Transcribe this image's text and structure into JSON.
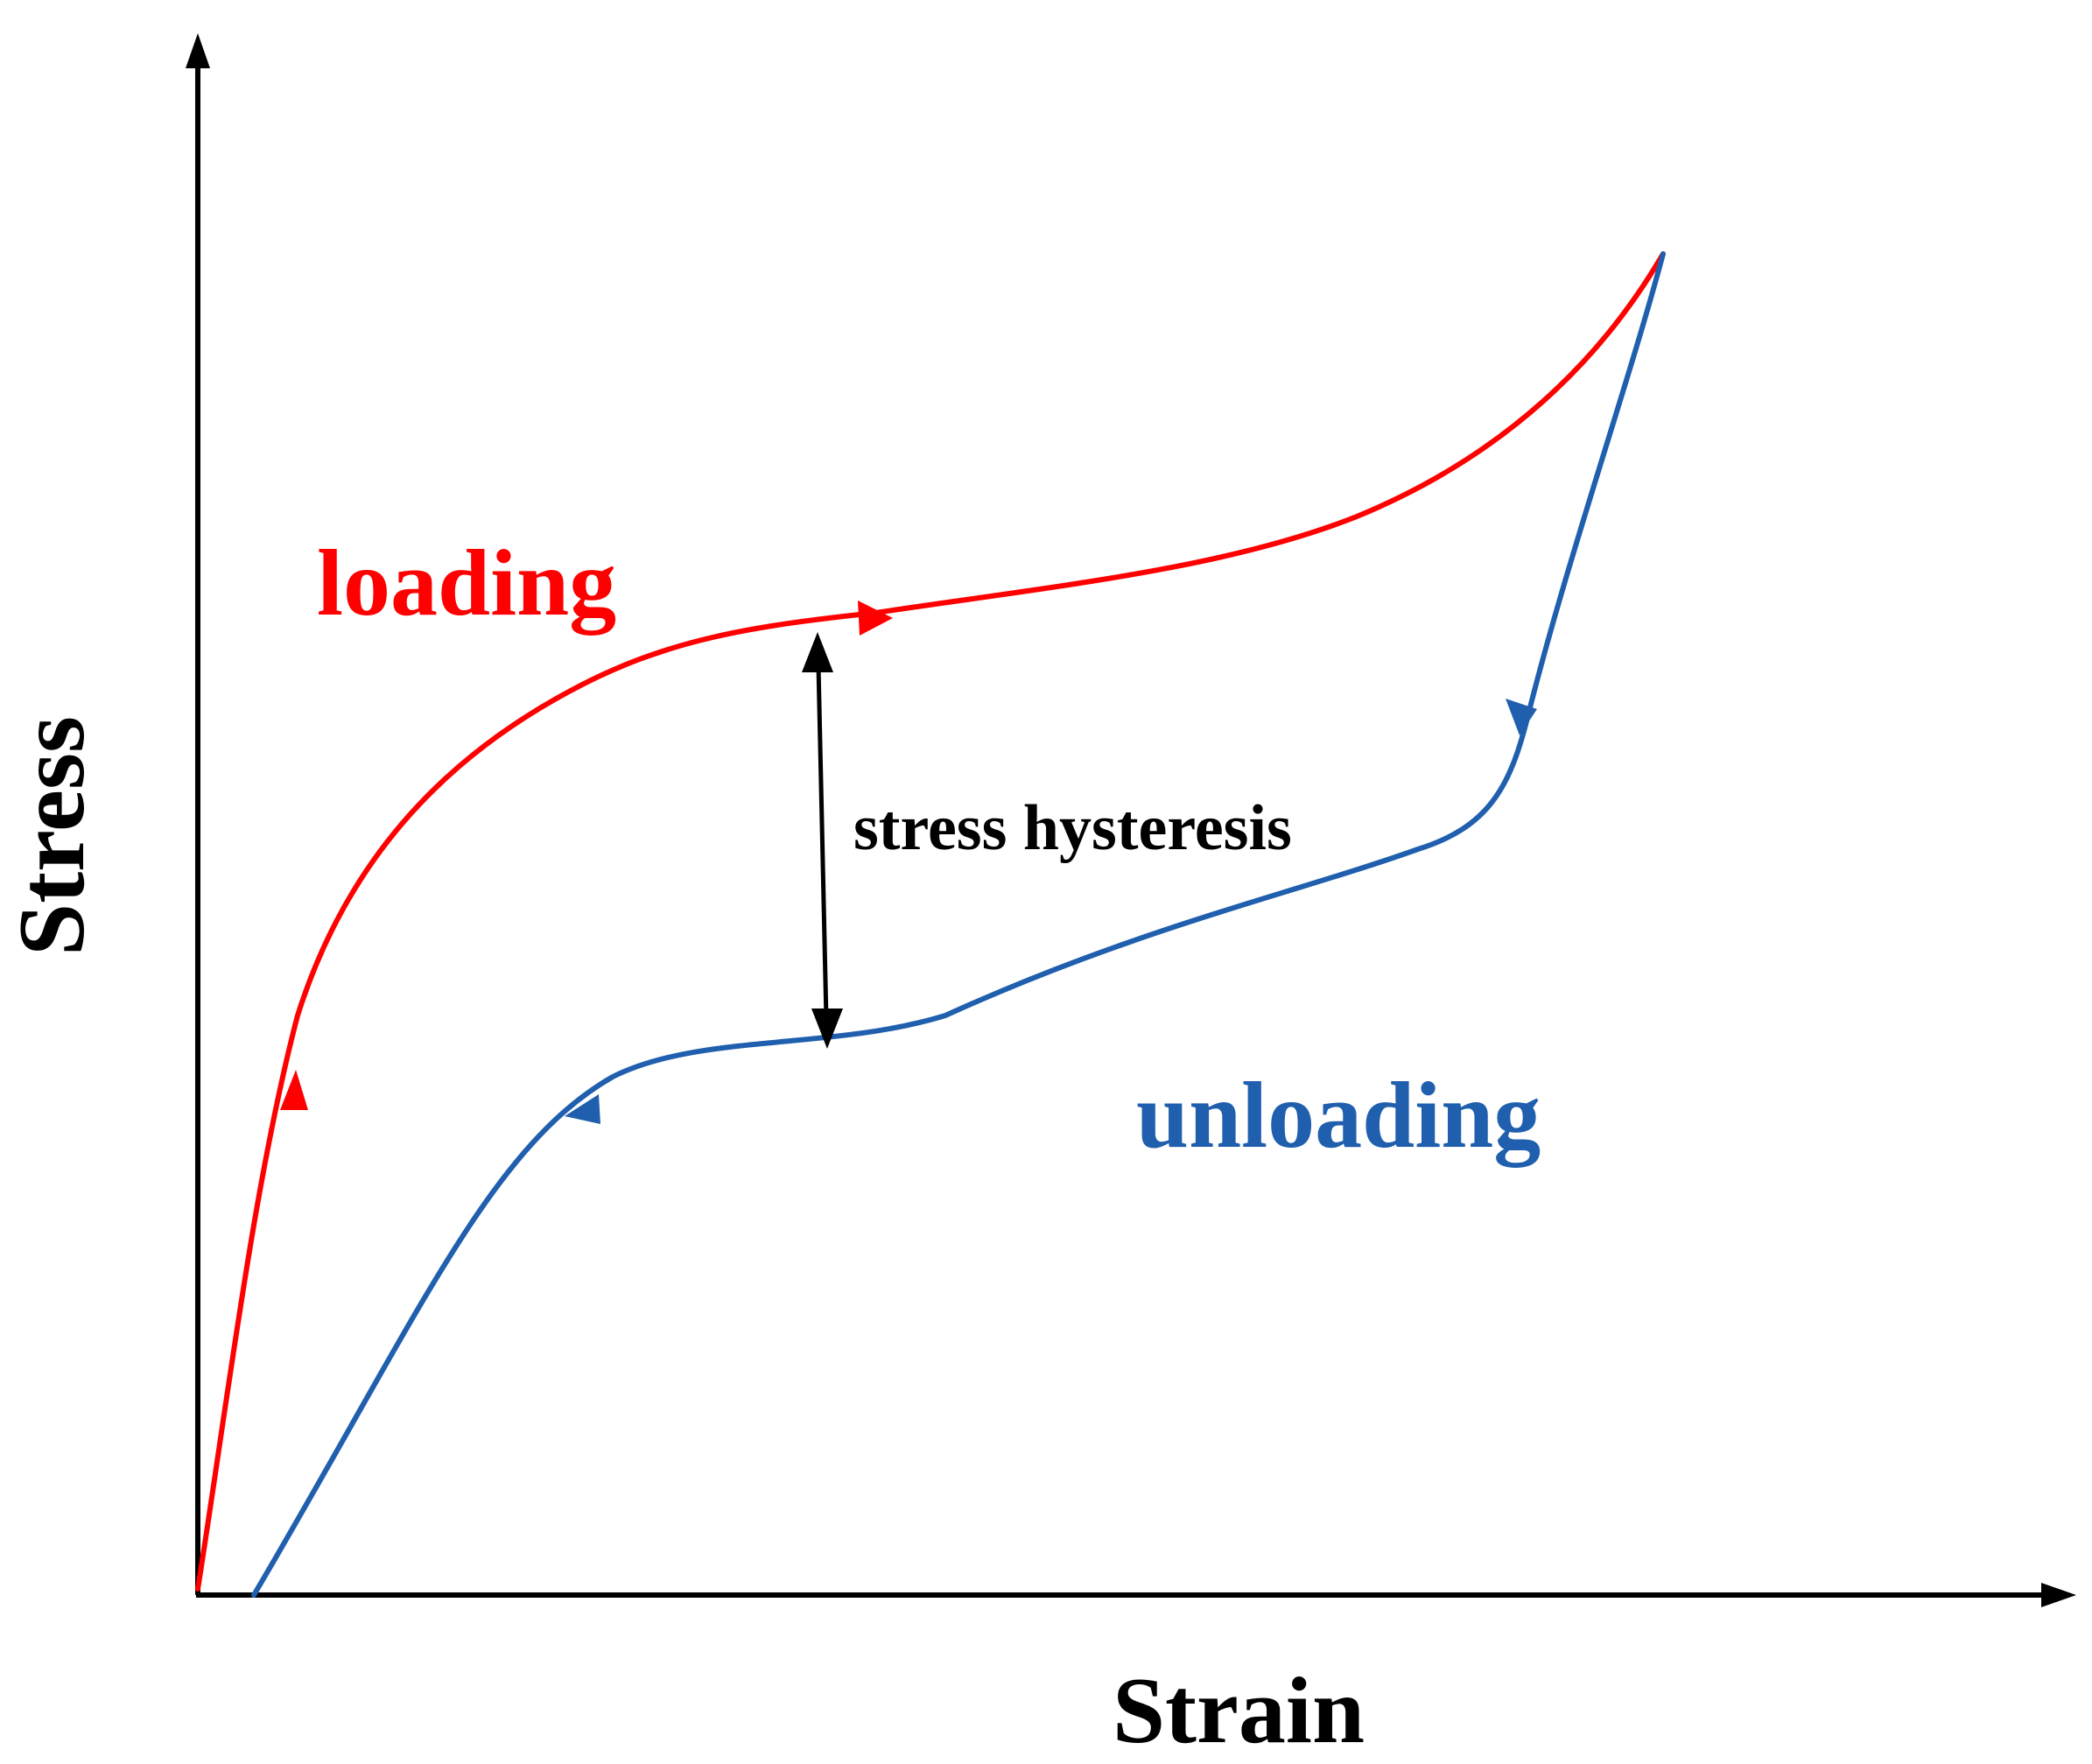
{
  "axes": {
    "x_label": "Strain",
    "y_label": "Stress"
  },
  "curves": {
    "loading": {
      "label": "loading",
      "color": "#ff0000"
    },
    "unloading": {
      "label": "unloading",
      "color": "#1f5fae"
    }
  },
  "annotation": {
    "label": "stress hysteresis",
    "color": "#000000"
  }
}
